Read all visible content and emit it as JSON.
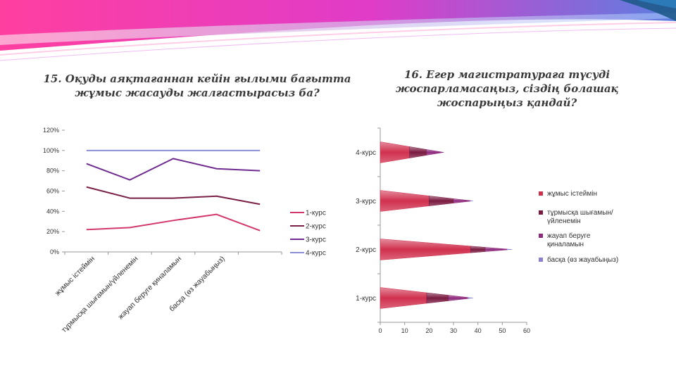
{
  "titles": {
    "left": "15. Оқуды аяқтағаннан кейін ғылыми бағытта жұмыс жасауды жалғастырасыз ба?",
    "right": "16. Егер магистратураға түсуді жоспарламасаңыз, сіздің болашақ жоспарыңыз қандай?"
  },
  "chart_data": [
    {
      "type": "line",
      "title": "15. Оқуды аяқтағаннан кейін ғылыми бағытта жұмыс жасауды жалғастырасыз ба?",
      "categories": [
        "жұмыс істеймін",
        "тұрмысқа шығамын/үйленемін",
        "жауап беруге қиналамын",
        "басқа (өз жауабыңыз)",
        ""
      ],
      "y_ticks": [
        "0%",
        "20%",
        "40%",
        "60%",
        "80%",
        "100%",
        "120%"
      ],
      "ylim": [
        0,
        120
      ],
      "legend_position": "right",
      "series": [
        {
          "name": "1-курс",
          "color": "#d2386a",
          "values": [
            22,
            24,
            31,
            37,
            21
          ]
        },
        {
          "name": "2-курс",
          "color": "#7a1f45",
          "values": [
            64,
            53,
            53,
            55,
            47
          ]
        },
        {
          "name": "3-курс",
          "color": "#6f2b8f",
          "values": [
            87,
            71,
            92,
            82,
            80
          ]
        },
        {
          "name": "4-курс",
          "color": "#8b8fd8",
          "values": [
            100,
            100,
            100,
            100,
            100
          ]
        }
      ]
    },
    {
      "type": "bar",
      "orientation": "horizontal",
      "stacked": true,
      "title": "16. Егер магистратураға түсуді жоспарламасаңыз, сіздің болашақ жоспарыңыз қандай?",
      "categories": [
        "4-курс",
        "3-курс",
        "2-курс",
        "1-курс"
      ],
      "x_ticks": [
        "0",
        "10",
        "20",
        "30",
        "40",
        "50",
        "60"
      ],
      "xlim": [
        0,
        60
      ],
      "legend_position": "right",
      "series": [
        {
          "name": "жұмыс істеймін",
          "color": "#d0304e",
          "values": [
            12,
            20,
            37,
            19
          ]
        },
        {
          "name": "тұрмысқа шығамын/үйленемін",
          "color": "#7a1a40",
          "values": [
            7,
            10,
            6,
            9
          ]
        },
        {
          "name": "жауап беруге қиналамын",
          "color": "#8e2a7c",
          "values": [
            7,
            7,
            9,
            8
          ]
        },
        {
          "name": "басқа (өз жауабыңыз)",
          "color": "#8880d0",
          "values": [
            0,
            1,
            2,
            2
          ]
        }
      ]
    }
  ]
}
